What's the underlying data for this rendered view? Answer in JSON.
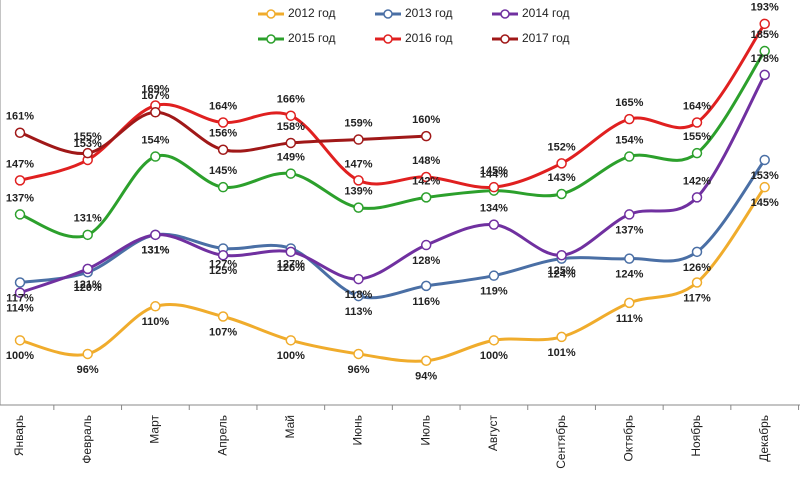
{
  "chart_data": {
    "type": "line",
    "categories": [
      "Январь",
      "Февраль",
      "Март",
      "Апрель",
      "Май",
      "Июнь",
      "Июль",
      "Август",
      "Сентябрь",
      "Октябрь",
      "Ноябрь",
      "Декабрь"
    ],
    "ylim": [
      81,
      200
    ],
    "legend": "top",
    "series": [
      {
        "name": "2012 год",
        "color": "#f0ac2c",
        "values": [
          100,
          96,
          110,
          107,
          100,
          96,
          94,
          100,
          101,
          111,
          117,
          145
        ],
        "value_labels": [
          "100%",
          "96%",
          "110%",
          "107%",
          "100%",
          "96%",
          "94%",
          "100%",
          "101%",
          "111%",
          "117%",
          "145%"
        ]
      },
      {
        "name": "2013 год",
        "color": "#4a6fa5",
        "values": [
          117,
          120,
          131,
          127,
          127,
          113,
          116,
          119,
          124,
          124,
          126,
          153
        ],
        "value_labels": [
          "117%",
          "120%",
          "131%",
          "127%",
          "127%",
          "113%",
          "116%",
          "119%",
          "124%",
          "124%",
          "126%",
          "153%"
        ]
      },
      {
        "name": "2014 год",
        "color": "#7030a0",
        "values": [
          114,
          121,
          131,
          125,
          126,
          118,
          128,
          134,
          125,
          137,
          142,
          178
        ],
        "value_labels": [
          "114%",
          "121%",
          "131%",
          "125%",
          "126%",
          "118%",
          "128%",
          "134%",
          "125%",
          "137%",
          "142%",
          "178%"
        ]
      },
      {
        "name": "2015 год",
        "color": "#2ca02c",
        "values": [
          137,
          131,
          154,
          145,
          149,
          139,
          142,
          144,
          143,
          154,
          155,
          185
        ],
        "value_labels": [
          "137%",
          "131%",
          "154%",
          "145%",
          "149%",
          "139%",
          "142%",
          "144%",
          "143%",
          "154%",
          "155%",
          "185%"
        ]
      },
      {
        "name": "2016 год",
        "color": "#e02020",
        "values": [
          147,
          153,
          169,
          164,
          166,
          147,
          148,
          145,
          152,
          165,
          164,
          193
        ],
        "value_labels": [
          "147%",
          "153%",
          "169%",
          "164%",
          "166%",
          "147%",
          "148%",
          "145%",
          "152%",
          "165%",
          "164%",
          "193%"
        ]
      },
      {
        "name": "2017 год",
        "color": "#a01818",
        "values": [
          161,
          155,
          167,
          156,
          158,
          159,
          160,
          null,
          null,
          null,
          null,
          null
        ],
        "value_labels": [
          "161%",
          "155%",
          "167%",
          "156%",
          "158%",
          "159%",
          "160%",
          null,
          null,
          null,
          null,
          null
        ]
      }
    ]
  }
}
